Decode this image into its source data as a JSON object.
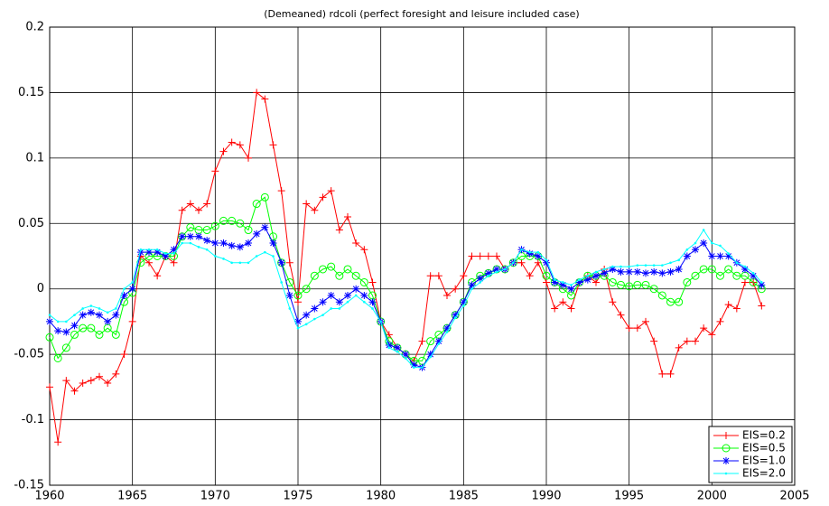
{
  "chart_data": {
    "type": "line",
    "title": "(Demeaned) rdcoli (perfect foresight and leisure included case)",
    "x": [
      1960,
      1960.5,
      1961,
      1961.5,
      1962,
      1962.5,
      1963,
      1963.5,
      1964,
      1964.5,
      1965,
      1965.5,
      1966,
      1966.5,
      1967,
      1967.5,
      1968,
      1968.5,
      1969,
      1969.5,
      1970,
      1970.5,
      1971,
      1971.5,
      1972,
      1972.5,
      1973,
      1973.5,
      1974,
      1974.5,
      1975,
      1975.5,
      1976,
      1976.5,
      1977,
      1977.5,
      1978,
      1978.5,
      1979,
      1979.5,
      1980,
      1980.5,
      1981,
      1981.5,
      1982,
      1982.5,
      1983,
      1983.5,
      1984,
      1984.5,
      1985,
      1985.5,
      1986,
      1986.5,
      1987,
      1987.5,
      1988,
      1988.5,
      1989,
      1989.5,
      1990,
      1990.5,
      1991,
      1991.5,
      1992,
      1992.5,
      1993,
      1993.5,
      1994,
      1994.5,
      1995,
      1995.5,
      1996,
      1996.5,
      1997,
      1997.5,
      1998,
      1998.5,
      1999,
      1999.5,
      2000,
      2000.5,
      2001,
      2001.5,
      2002,
      2002.5,
      2003
    ],
    "series": [
      {
        "name": "EIS=0.2",
        "color": "#ff0000",
        "marker": "plus",
        "values": [
          -0.075,
          -0.117,
          -0.07,
          -0.078,
          -0.072,
          -0.07,
          -0.067,
          -0.072,
          -0.065,
          -0.05,
          -0.025,
          0.025,
          0.02,
          0.01,
          0.025,
          0.02,
          0.06,
          0.065,
          0.06,
          0.065,
          0.09,
          0.105,
          0.112,
          0.11,
          0.1,
          0.15,
          0.145,
          0.11,
          0.075,
          0.02,
          -0.01,
          0.065,
          0.06,
          0.07,
          0.075,
          0.045,
          0.055,
          0.035,
          0.03,
          0.005,
          -0.025,
          -0.035,
          -0.045,
          -0.05,
          -0.055,
          -0.04,
          0.01,
          0.01,
          -0.005,
          0,
          0.01,
          0.025,
          0.025,
          0.025,
          0.025,
          0.015,
          0.02,
          0.02,
          0.01,
          0.02,
          0.005,
          -0.015,
          -0.01,
          -0.015,
          0.005,
          0.01,
          0.005,
          0.015,
          -0.01,
          -0.02,
          -0.03,
          -0.03,
          -0.025,
          -0.04,
          -0.065,
          -0.065,
          -0.045,
          -0.04,
          -0.04,
          -0.03,
          -0.035,
          -0.025,
          -0.012,
          -0.015,
          0.005,
          0.005,
          -0.013
        ]
      },
      {
        "name": "EIS=0.5",
        "color": "#00ff00",
        "marker": "circle",
        "values": [
          -0.037,
          -0.053,
          -0.045,
          -0.035,
          -0.03,
          -0.03,
          -0.035,
          -0.03,
          -0.035,
          -0.01,
          -0.003,
          0.02,
          0.025,
          0.025,
          0.025,
          0.025,
          0.04,
          0.047,
          0.045,
          0.045,
          0.048,
          0.052,
          0.052,
          0.05,
          0.045,
          0.065,
          0.07,
          0.04,
          0.02,
          0.005,
          -0.005,
          0,
          0.01,
          0.015,
          0.017,
          0.01,
          0.015,
          0.01,
          0.005,
          -0.005,
          -0.025,
          -0.04,
          -0.045,
          -0.05,
          -0.055,
          -0.055,
          -0.04,
          -0.035,
          -0.03,
          -0.02,
          -0.01,
          0.005,
          0.01,
          0.012,
          0.015,
          0.015,
          0.02,
          0.025,
          0.025,
          0.025,
          0.01,
          0.005,
          0,
          -0.005,
          0.005,
          0.01,
          0.01,
          0.01,
          0.005,
          0.003,
          0.002,
          0.003,
          0.003,
          0,
          -0.005,
          -0.01,
          -0.01,
          0.005,
          0.01,
          0.015,
          0.015,
          0.01,
          0.015,
          0.01,
          0.01,
          0.005,
          0
        ]
      },
      {
        "name": "EIS=1.0",
        "color": "#0000ff",
        "marker": "star",
        "values": [
          -0.025,
          -0.032,
          -0.033,
          -0.028,
          -0.02,
          -0.018,
          -0.02,
          -0.025,
          -0.02,
          -0.005,
          0,
          0.028,
          0.028,
          0.028,
          0.025,
          0.03,
          0.04,
          0.04,
          0.04,
          0.037,
          0.035,
          0.035,
          0.033,
          0.032,
          0.035,
          0.042,
          0.047,
          0.035,
          0.02,
          -0.005,
          -0.025,
          -0.02,
          -0.015,
          -0.01,
          -0.005,
          -0.01,
          -0.005,
          0,
          -0.005,
          -0.01,
          -0.025,
          -0.043,
          -0.045,
          -0.05,
          -0.058,
          -0.06,
          -0.05,
          -0.04,
          -0.03,
          -0.02,
          -0.01,
          0.003,
          0.008,
          0.012,
          0.015,
          0.015,
          0.02,
          0.03,
          0.027,
          0.025,
          0.02,
          0.005,
          0.003,
          0,
          0.005,
          0.007,
          0.01,
          0.012,
          0.015,
          0.013,
          0.013,
          0.013,
          0.012,
          0.013,
          0.012,
          0.013,
          0.015,
          0.025,
          0.03,
          0.035,
          0.025,
          0.025,
          0.025,
          0.02,
          0.015,
          0.01,
          0.003
        ]
      },
      {
        "name": "EIS=2.0",
        "color": "#00ffff",
        "marker": "point",
        "values": [
          -0.02,
          -0.025,
          -0.025,
          -0.02,
          -0.015,
          -0.013,
          -0.015,
          -0.018,
          -0.015,
          0,
          0.005,
          0.03,
          0.03,
          0.03,
          0.027,
          0.027,
          0.035,
          0.035,
          0.032,
          0.03,
          0.025,
          0.023,
          0.02,
          0.02,
          0.02,
          0.025,
          0.028,
          0.025,
          0.005,
          -0.015,
          -0.03,
          -0.027,
          -0.023,
          -0.02,
          -0.015,
          -0.015,
          -0.01,
          -0.005,
          -0.01,
          -0.015,
          -0.025,
          -0.045,
          -0.048,
          -0.053,
          -0.06,
          -0.06,
          -0.052,
          -0.042,
          -0.033,
          -0.022,
          -0.013,
          0,
          0.005,
          0.01,
          0.013,
          0.015,
          0.02,
          0.03,
          0.028,
          0.028,
          0.022,
          0.007,
          0.005,
          0.003,
          0.007,
          0.01,
          0.013,
          0.015,
          0.017,
          0.017,
          0.017,
          0.018,
          0.018,
          0.018,
          0.018,
          0.02,
          0.022,
          0.03,
          0.035,
          0.045,
          0.035,
          0.033,
          0.027,
          0.02,
          0.017,
          0.012,
          0.005
        ]
      }
    ],
    "xlim": [
      1960,
      2005
    ],
    "xticks": [
      1960,
      1965,
      1970,
      1975,
      1980,
      1985,
      1990,
      1995,
      2000,
      2005
    ],
    "ylim": [
      -0.15,
      0.2
    ],
    "yticks": [
      -0.15,
      -0.1,
      -0.05,
      0,
      0.05,
      0.1,
      0.15,
      0.2
    ],
    "grid": true,
    "legend": "lower right"
  }
}
